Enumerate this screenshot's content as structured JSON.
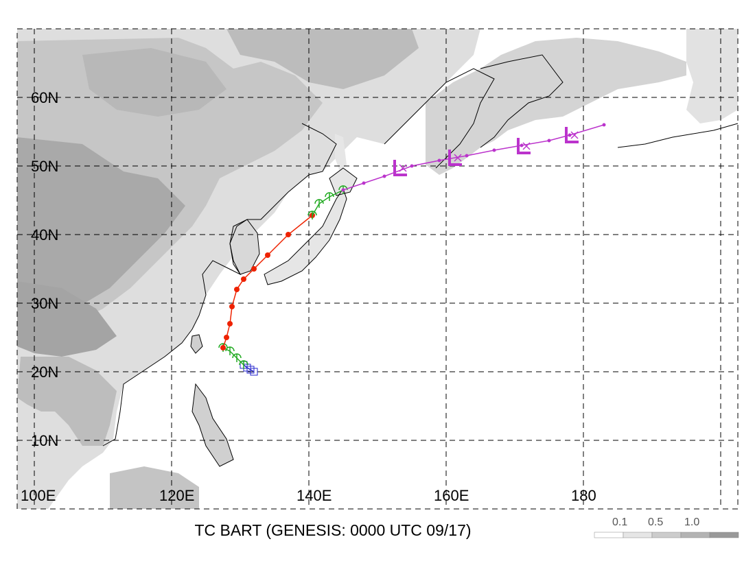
{
  "title": "TC BART (GENESIS: 0000 UTC 09/17)",
  "lat_labels": [
    "60N",
    "50N",
    "40N",
    "30N",
    "20N",
    "10N"
  ],
  "lon_labels": [
    "100E",
    "120E",
    "140E",
    "160E",
    "180"
  ],
  "legend": {
    "ticks": [
      "0.1",
      "0.5",
      "1.0"
    ],
    "colors": [
      "#ffffff",
      "#e6e6e6",
      "#cccccc",
      "#b3b3b3",
      "#999999"
    ]
  },
  "colors": {
    "land_shading_light": "#e0e0e0",
    "land_shading_mid": "#c8c8c8",
    "land_shading_dark": "#a8a8a8",
    "track_depression": "#2222cc",
    "track_storm": "#22aa22",
    "track_typhoon": "#ee2200",
    "track_extratropical": "#bb33cc"
  },
  "track": [
    {
      "stage": "depression",
      "color": "#2222cc",
      "points": [
        [
          132,
          20
        ],
        [
          131.5,
          20.3
        ],
        [
          131,
          20.6
        ],
        [
          130.5,
          21
        ]
      ]
    },
    {
      "stage": "storm",
      "color": "#22aa22",
      "points": [
        [
          130.5,
          21
        ],
        [
          129.5,
          22
        ],
        [
          128.5,
          23
        ],
        [
          127.5,
          23.5
        ]
      ]
    },
    {
      "stage": "typhoon",
      "color": "#ee2200",
      "points": [
        [
          127.5,
          23.5
        ],
        [
          128,
          25
        ],
        [
          128.5,
          27
        ],
        [
          128.8,
          29.5
        ],
        [
          129.5,
          32
        ],
        [
          130.5,
          33.5
        ],
        [
          132,
          35
        ],
        [
          134,
          37
        ],
        [
          137,
          40
        ],
        [
          140.5,
          42.8
        ]
      ]
    },
    {
      "stage": "storm",
      "color": "#22aa22",
      "points": [
        [
          140.5,
          42.8
        ],
        [
          141.5,
          44.5
        ],
        [
          143,
          45.5
        ],
        [
          145,
          46.5
        ]
      ]
    },
    {
      "stage": "extratropical",
      "color": "#bb33cc",
      "points": [
        [
          145,
          46.5
        ],
        [
          148,
          47.5
        ],
        [
          151,
          48.5
        ],
        [
          155,
          50
        ],
        [
          159,
          50.8
        ],
        [
          163,
          51.5
        ],
        [
          167,
          52.3
        ],
        [
          171,
          53
        ],
        [
          175,
          53.7
        ],
        [
          178,
          54.5
        ],
        [
          183,
          56
        ]
      ]
    }
  ]
}
